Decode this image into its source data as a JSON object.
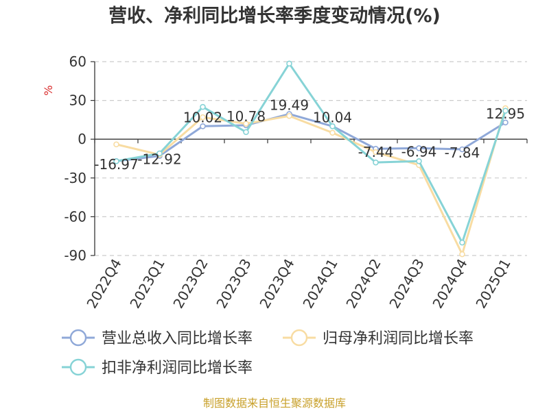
{
  "chart_data": {
    "type": "line",
    "title": "营收、净利同比增长率季度变动情况(%)",
    "ylabel": "%",
    "ylim": [
      -90,
      60
    ],
    "yticks": [
      60,
      30,
      0,
      -30,
      -60,
      -90
    ],
    "grid": true,
    "legend_position": "bottom",
    "categories": [
      "2022Q4",
      "2023Q1",
      "2023Q2",
      "2023Q3",
      "2023Q4",
      "2024Q1",
      "2024Q2",
      "2024Q3",
      "2024Q4",
      "2025Q1"
    ],
    "series": [
      {
        "name": "营业总收入同比增长率",
        "color": "#8fa8d8",
        "values": [
          -16.97,
          -12.92,
          10.02,
          10.78,
          19.49,
          10.04,
          -7.44,
          -6.94,
          -7.84,
          12.95
        ],
        "labels": [
          "-16.97",
          "-12.92",
          "10.02",
          "10.78",
          "19.49",
          "10.04",
          "-7.44",
          "-6.94",
          "-7.84",
          "12.95"
        ]
      },
      {
        "name": "归母净利润同比增长率",
        "color": "#f8dca2",
        "values": [
          -4.0,
          -12.0,
          17.0,
          12.0,
          18.0,
          5.0,
          -10.0,
          -20.0,
          -89.0,
          24.0
        ]
      },
      {
        "name": "扣非净利润同比增长率",
        "color": "#86d3d6",
        "values": [
          -17.0,
          -11.0,
          25.0,
          5.5,
          58.5,
          10.0,
          -18.0,
          -17.0,
          -80.0,
          22.0
        ]
      }
    ]
  },
  "source": "制图数据来自恒生聚源数据库"
}
